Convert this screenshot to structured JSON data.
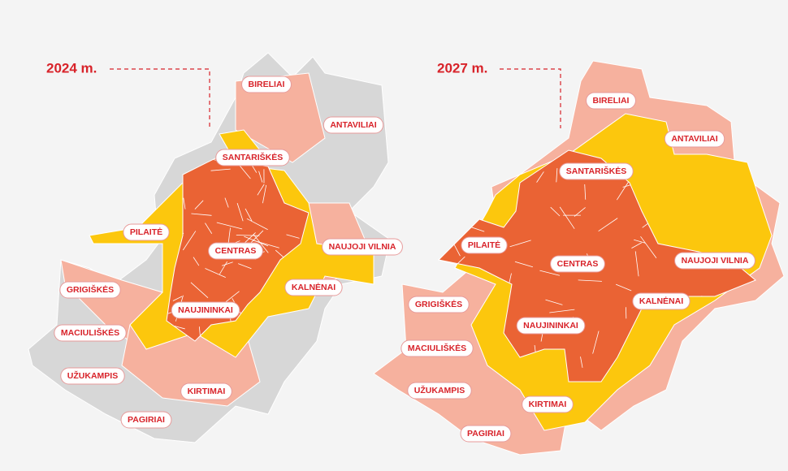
{
  "maps": [
    {
      "title": "2024 m.",
      "labels": [
        "BIRELIAI",
        "ANTAVILIAI",
        "SANTARIŠKĖS",
        "PILAITĖ",
        "CENTRAS",
        "NAUJOJI VILNIA",
        "KALNĖNAI",
        "GRIGIŠKĖS",
        "NAUJININKAI",
        "MACIULIŠKĖS",
        "UŽUKAMPIS",
        "KIRTIMAI",
        "PAGIRIAI"
      ]
    },
    {
      "title": "2027 m.",
      "labels": [
        "BIRELIAI",
        "ANTAVILIAI",
        "SANTARIŠKĖS",
        "PILAITĖ",
        "CENTRAS",
        "NAUJOJI VILNIA",
        "KALNĖNAI",
        "GRIGIŠKĖS",
        "NAUJININKAI",
        "MACIULIŠKĖS",
        "UŽUKAMPIS",
        "KIRTIMAI",
        "PAGIRIAI"
      ]
    }
  ]
}
